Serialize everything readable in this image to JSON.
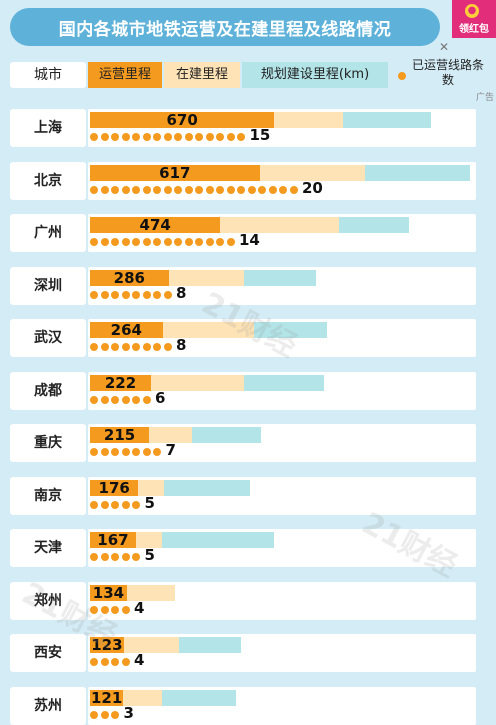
{
  "title": "国内各城市地铁运营及在建里程及线路情况",
  "badge": {
    "text": "领红包",
    "icon": "red-envelope-icon",
    "color": "#e22d7a"
  },
  "ad_mark": "广告",
  "watermark": "21财经",
  "legend": {
    "city": "城市",
    "operating": "运营里程",
    "building": "在建里程",
    "planned": "规划建设里程(km)",
    "lines_label": "已运营线路条数"
  },
  "colors": {
    "operating": "#f39a1f",
    "building": "#fde3b6",
    "planned": "#b3e4e8",
    "title_bg": "#5eb2d9",
    "page_bg": "#d4ecf6"
  },
  "chart_data": {
    "type": "bar",
    "title": "国内各城市地铁运营及在建里程及线路情况",
    "unit": "km",
    "categories": [
      "上海",
      "北京",
      "广州",
      "深圳",
      "武汉",
      "成都",
      "重庆",
      "南京",
      "天津",
      "郑州",
      "西安",
      "苏州"
    ],
    "series": [
      {
        "name": "运营里程",
        "values": [
          670,
          617,
          474,
          286,
          264,
          222,
          215,
          176,
          167,
          134,
          123,
          121
        ]
      },
      {
        "name": "已运营线路条数",
        "values": [
          15,
          20,
          14,
          8,
          8,
          6,
          7,
          5,
          5,
          4,
          4,
          3
        ]
      }
    ],
    "cumulative_including_building_km": [
      920,
      1000,
      905,
      560,
      595,
      560,
      370,
      270,
      260,
      310,
      325,
      262
    ],
    "cumulative_including_planned_km": [
      1240,
      1390,
      1160,
      820,
      860,
      850,
      620,
      580,
      670,
      310,
      550,
      530
    ]
  }
}
